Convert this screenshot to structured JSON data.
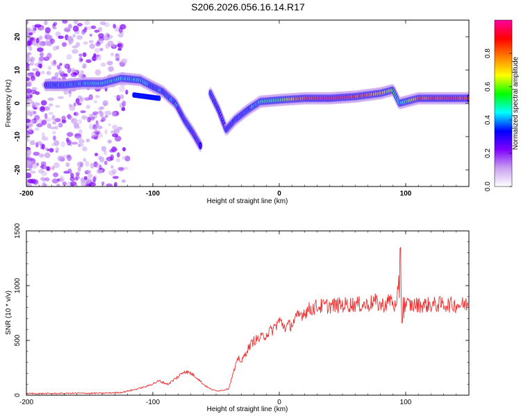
{
  "title": "S206.2026.056.16.14.R17",
  "chart_data": [
    {
      "type": "heatmap",
      "name": "spectrogram",
      "xlabel": "Height of straight line (km)",
      "ylabel": "Frequency (Hz)",
      "xlim": [
        -200,
        150
      ],
      "ylim": [
        -25,
        25
      ],
      "xticks": [
        -200,
        -100,
        0,
        100
      ],
      "yticks": [
        -20,
        -10,
        0,
        10,
        20
      ],
      "xtick_labels": [
        "-200",
        "-100",
        "0",
        "100"
      ],
      "ytick_labels": [
        "-20",
        "-10",
        "0",
        "10",
        "20"
      ],
      "colorbar": {
        "label": "Normalized spectral amplitude",
        "range": [
          0.0,
          1.0
        ],
        "ticks": [
          0.0,
          0.2,
          0.4,
          0.6,
          0.8
        ],
        "tick_labels": [
          "0.0",
          "0.2",
          "0.4",
          "0.6",
          "0.8"
        ],
        "colormap": [
          "#ffffff",
          "#c8a0f0",
          "#8000ff",
          "#0000ff",
          "#00ffff",
          "#00ff00",
          "#ffff00",
          "#ff8000",
          "#ff0000",
          "#ff00a0"
        ]
      },
      "ridge": [
        {
          "x": -185,
          "y": 5.5,
          "a": 0.3
        },
        {
          "x": -170,
          "y": 5.5,
          "a": 0.35
        },
        {
          "x": -155,
          "y": 6.0,
          "a": 0.4
        },
        {
          "x": -140,
          "y": 6.0,
          "a": 0.45
        },
        {
          "x": -125,
          "y": 7.5,
          "a": 0.45
        },
        {
          "x": -110,
          "y": 7.0,
          "a": 0.4
        },
        {
          "x": -100,
          "y": 5.0,
          "a": 0.35
        },
        {
          "x": -92,
          "y": 3.5,
          "a": 0.35
        },
        {
          "x": -82,
          "y": 0.0,
          "a": 0.35
        },
        {
          "x": -75,
          "y": -5.0,
          "a": 0.3
        },
        {
          "x": -68,
          "y": -9.0,
          "a": 0.3
        },
        {
          "x": -62,
          "y": -13.0,
          "a": 0.25
        },
        {
          "x": -55,
          "y": 3.5,
          "a": 0.3
        },
        {
          "x": -48,
          "y": -2.0,
          "a": 0.3
        },
        {
          "x": -42,
          "y": -8.0,
          "a": 0.25
        },
        {
          "x": -35,
          "y": -5.0,
          "a": 0.3
        },
        {
          "x": -25,
          "y": -2.0,
          "a": 0.35
        },
        {
          "x": -15,
          "y": 0.5,
          "a": 0.45
        },
        {
          "x": 0,
          "y": 1.0,
          "a": 0.55
        },
        {
          "x": 20,
          "y": 1.5,
          "a": 0.85
        },
        {
          "x": 40,
          "y": 1.5,
          "a": 0.95
        },
        {
          "x": 60,
          "y": 2.0,
          "a": 0.85
        },
        {
          "x": 80,
          "y": 3.0,
          "a": 0.75
        },
        {
          "x": 90,
          "y": 4.0,
          "a": 0.55
        },
        {
          "x": 95,
          "y": 0.0,
          "a": 0.4
        },
        {
          "x": 110,
          "y": 1.5,
          "a": 0.8
        },
        {
          "x": 130,
          "y": 1.5,
          "a": 0.9
        },
        {
          "x": 150,
          "y": 1.5,
          "a": 0.85
        }
      ]
    },
    {
      "type": "line",
      "name": "snr",
      "xlabel": "Height of straight line (km)",
      "ylabel": "SNR (10 * v/v)",
      "xlim": [
        -200,
        150
      ],
      "ylim": [
        0,
        1500
      ],
      "xticks": [
        -200,
        -100,
        0,
        100
      ],
      "yticks": [
        0,
        500,
        1000,
        1500
      ],
      "xtick_labels": [
        "-200",
        "-100",
        "0",
        "100"
      ],
      "ytick_labels": [
        "0",
        "500",
        "1000",
        "1500"
      ],
      "color": "#ee3030",
      "series": [
        {
          "name": "SNR",
          "x": [
            -200,
            -180,
            -160,
            -140,
            -125,
            -115,
            -105,
            -95,
            -88,
            -80,
            -75,
            -70,
            -65,
            -60,
            -55,
            -50,
            -45,
            -40,
            -37,
            -34,
            -32,
            -30,
            -25,
            -20,
            -15,
            -10,
            -5,
            0,
            5,
            10,
            15,
            20,
            25,
            30,
            40,
            50,
            60,
            70,
            75,
            80,
            85,
            88,
            92,
            94,
            95,
            96,
            97,
            98,
            100,
            105,
            110,
            120,
            130,
            140,
            150
          ],
          "y": [
            15,
            15,
            18,
            18,
            25,
            50,
            80,
            130,
            100,
            170,
            220,
            200,
            160,
            100,
            60,
            40,
            45,
            60,
            180,
            280,
            350,
            300,
            420,
            500,
            520,
            560,
            600,
            680,
            620,
            650,
            720,
            760,
            790,
            810,
            815,
            825,
            830,
            825,
            860,
            820,
            835,
            880,
            800,
            780,
            1100,
            1400,
            700,
            840,
            830,
            820,
            825,
            825,
            830,
            825,
            830
          ]
        }
      ]
    }
  ]
}
